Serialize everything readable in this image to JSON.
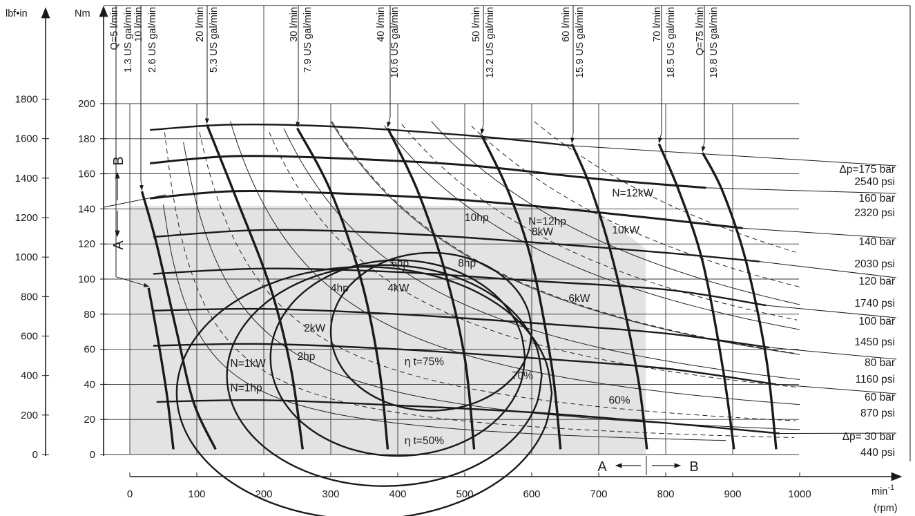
{
  "chart_data": {
    "type": "line",
    "title": "",
    "y_unit_left": "lbf•in",
    "y_unit_right": "Nm",
    "x_unit": "min-1",
    "x_unit_sup": "-1",
    "x_unit_base": "min",
    "x_unit_sub": "(rpm)",
    "xlim": [
      0,
      1000
    ],
    "ylim": [
      0,
      200
    ],
    "grid": true,
    "shaded_region": "continuous operation",
    "x_ticks": [
      "0",
      "100",
      "200",
      "300",
      "400",
      "500",
      "600",
      "700",
      "800",
      "900",
      "1000"
    ],
    "nm_ticks": [
      "0",
      "20",
      "40",
      "60",
      "80",
      "100",
      "120",
      "140",
      "160",
      "180",
      "200"
    ],
    "lbf_ticks": [
      "0",
      "200",
      "400",
      "600",
      "800",
      "1000",
      "1200",
      "1400",
      "1600",
      "1800"
    ],
    "pressure_curves": [
      {
        "bar": "Δp= 30 bar",
        "psi": "440 psi",
        "points": [
          [
            40,
            30
          ],
          [
            200,
            31
          ],
          [
            400,
            28
          ],
          [
            600,
            24
          ],
          [
            800,
            18
          ],
          [
            970,
            12
          ]
        ]
      },
      {
        "bar": "60 bar",
        "psi": "870 psi",
        "points": [
          [
            35,
            62
          ],
          [
            200,
            63
          ],
          [
            400,
            60
          ],
          [
            600,
            55
          ],
          [
            800,
            49
          ],
          [
            965,
            40
          ]
        ]
      },
      {
        "bar": "80 bar",
        "psi": "1160 psi",
        "points": [
          [
            35,
            82
          ],
          [
            200,
            83
          ],
          [
            400,
            80
          ],
          [
            600,
            75
          ],
          [
            800,
            69
          ],
          [
            955,
            61
          ]
        ]
      },
      {
        "bar": "100 bar",
        "psi": "1450 psi",
        "points": [
          [
            35,
            103
          ],
          [
            200,
            106
          ],
          [
            400,
            104
          ],
          [
            600,
            99
          ],
          [
            800,
            94
          ],
          [
            950,
            85
          ]
        ]
      },
      {
        "bar": "120 bar",
        "psi": "1740 psi",
        "points": [
          [
            35,
            124
          ],
          [
            200,
            128
          ],
          [
            400,
            126
          ],
          [
            600,
            121
          ],
          [
            800,
            115
          ],
          [
            940,
            110
          ]
        ]
      },
      {
        "bar": "140 bar",
        "psi": "2030 psi",
        "points": [
          [
            30,
            146
          ],
          [
            150,
            150
          ],
          [
            300,
            149
          ],
          [
            500,
            145
          ],
          [
            700,
            138
          ],
          [
            915,
            129
          ]
        ]
      },
      {
        "bar": "160 bar",
        "psi": "2320 psi",
        "points": [
          [
            30,
            166
          ],
          [
            150,
            170
          ],
          [
            300,
            169
          ],
          [
            500,
            165
          ],
          [
            700,
            157
          ],
          [
            860,
            152
          ]
        ]
      },
      {
        "bar": "Δp=175 bar",
        "psi": "2540 psi",
        "points": [
          [
            30,
            185
          ],
          [
            150,
            188
          ],
          [
            300,
            187
          ],
          [
            500,
            182
          ],
          [
            660,
            176
          ]
        ]
      }
    ],
    "flow_curves": [
      {
        "label": "Q=5 l/min",
        "us": "1.3 US gal/min",
        "points": [
          [
            28,
            95
          ],
          [
            40,
            70
          ],
          [
            55,
            35
          ],
          [
            65,
            3
          ]
        ]
      },
      {
        "label": "10 l/min",
        "us": "2.6 US gal/min",
        "points": [
          [
            18,
            150
          ],
          [
            40,
            120
          ],
          [
            70,
            70
          ],
          [
            95,
            30
          ],
          [
            128,
            3
          ]
        ]
      },
      {
        "label": "20 l/min",
        "us": "5.3 US gal/min",
        "points": [
          [
            115,
            188
          ],
          [
            160,
            145
          ],
          [
            210,
            95
          ],
          [
            240,
            50
          ],
          [
            258,
            3
          ]
        ]
      },
      {
        "label": "30 l/min",
        "us": "7.9 US gal/min",
        "points": [
          [
            250,
            186
          ],
          [
            300,
            150
          ],
          [
            345,
            100
          ],
          [
            372,
            50
          ],
          [
            385,
            3
          ]
        ]
      },
      {
        "label": "40 l/min",
        "us": "10.6 US gal/min",
        "points": [
          [
            385,
            186
          ],
          [
            430,
            150
          ],
          [
            470,
            105
          ],
          [
            500,
            55
          ],
          [
            514,
            3
          ]
        ]
      },
      {
        "label": "50 l/min",
        "us": "13.2 US gal/min",
        "points": [
          [
            525,
            182
          ],
          [
            565,
            150
          ],
          [
            600,
            110
          ],
          [
            630,
            50
          ],
          [
            643,
            3
          ]
        ]
      },
      {
        "label": "60 l/min",
        "us": "15.9 US gal/min",
        "points": [
          [
            660,
            177
          ],
          [
            690,
            150
          ],
          [
            725,
            105
          ],
          [
            758,
            45
          ],
          [
            772,
            3
          ]
        ]
      },
      {
        "label": "70 l/min",
        "us": "18.5 US gal/min",
        "points": [
          [
            790,
            177
          ],
          [
            820,
            150
          ],
          [
            855,
            110
          ],
          [
            885,
            50
          ],
          [
            902,
            3
          ]
        ]
      },
      {
        "label": "Q=75 l/min",
        "us": "19.8 US gal/min",
        "points": [
          [
            855,
            172
          ],
          [
            885,
            150
          ],
          [
            920,
            110
          ],
          [
            950,
            55
          ],
          [
            965,
            3
          ]
        ]
      }
    ],
    "power_labels": [
      "N=1kW",
      "N=1hp",
      "2kW",
      "2hp",
      "4hp",
      "4kW",
      "6hp",
      "8hp",
      "6kW",
      "10hp",
      "8kW",
      "N=12hp",
      "10kW",
      "N=12kW"
    ],
    "efficiency_labels": [
      {
        "text": "η t=75%",
        "value": 75
      },
      {
        "text": "70%",
        "value": 70
      },
      {
        "text": "60%",
        "value": 60
      },
      {
        "text": "η t=50%",
        "value": 50
      }
    ],
    "region_labels": {
      "A": "A",
      "B": "B"
    }
  }
}
